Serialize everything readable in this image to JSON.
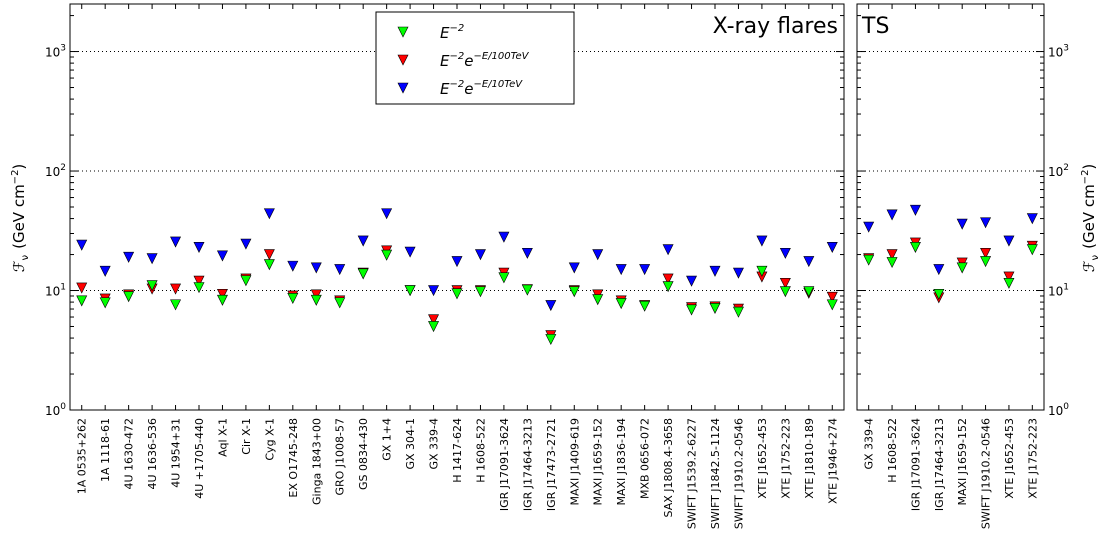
{
  "chart_data": {
    "type": "scatter",
    "y_scale": "log",
    "ylim": [
      1,
      2500
    ],
    "ylabel": "ℱν (GeV cm⁻²)",
    "ylabel_parts": {
      "symbol": "ℱ",
      "sub": "ν",
      "unit": "(GeV cm",
      "exp": "−2",
      "close": ")"
    },
    "ytick_values": [
      1,
      10,
      100,
      1000
    ],
    "ytick_labels": [
      {
        "base": "10",
        "exp": "0"
      },
      {
        "base": "10",
        "exp": "1"
      },
      {
        "base": "10",
        "exp": "2"
      },
      {
        "base": "10",
        "exp": "3"
      }
    ],
    "grid": "dotted horizontal at 10, 100, 1000",
    "legend": {
      "placement": "top-center of left panel",
      "entries": [
        {
          "key": "e2",
          "base": "E",
          "exp": "−2",
          "color": "#00ff00"
        },
        {
          "key": "cut100",
          "base": "E",
          "exp": "−2",
          "mid": "e",
          "exp2": "−E/100TeV",
          "color": "#ff0000"
        },
        {
          "key": "cut10",
          "base": "E",
          "exp": "−2",
          "mid": "e",
          "exp2": "−E/10TeV",
          "color": "#0000ff"
        }
      ]
    },
    "panels": [
      {
        "title": "X-ray flares",
        "categories": [
          "1A 0535+262",
          "1A 1118-61",
          "4U 1630-472",
          "4U 1636-536",
          "4U 1954+31",
          "4U +1705-440",
          "Aql X-1",
          "Cir X-1",
          "Cyg X-1",
          "EX O1745-248",
          "Ginga 1843+00",
          "GRO J1008-57",
          "GS 0834-430",
          "GX 1+4",
          "GX 304-1",
          "GX 339-4",
          "H 1417-624",
          "H 1608-522",
          "IGR J17091-3624",
          "IGR J17464-3213",
          "IGR J17473-2721",
          "MAXI J1409-619",
          "MAXI J1659-152",
          "MAXI J1836-194",
          "MXB 0656-072",
          "SAX J1808.4-3658",
          "SWIFT J1539.2-6227",
          "SWIFT J1842.5-1124",
          "SWIFT J1910.2-0546",
          "XTE J1652-453",
          "XTE J1752-223",
          "XTE J1810-189",
          "XTE J1946+274"
        ],
        "series": [
          {
            "key": "cut10",
            "color": "#0000ff",
            "values": [
              24,
              14.5,
              19,
              18.5,
              25.5,
              23,
              19.5,
              24.5,
              44,
              16,
              15.5,
              15,
              26,
              44,
              21,
              10,
              17.5,
              20,
              28,
              20.5,
              7.5,
              15.5,
              20,
              15,
              15,
              22,
              12,
              14.5,
              14,
              26,
              20.5,
              17.5,
              23
            ]
          },
          {
            "key": "cut100",
            "color": "#ff0000",
            "values": [
              10.5,
              8.5,
              9.2,
              10.3,
              10.3,
              12,
              9.3,
              12.5,
              20,
              9,
              9.2,
              8.2,
              14,
              21.5,
              10,
              5.7,
              10,
              10,
              14,
              10.2,
              4.2,
              10,
              9.2,
              8.2,
              7.5,
              12.5,
              7.2,
              7.3,
              7,
              13,
              11.5,
              9.5,
              8.8
            ]
          },
          {
            "key": "e2",
            "color": "#00ff00",
            "values": [
              8.2,
              7.9,
              8.9,
              11,
              7.6,
              10.6,
              8.3,
              12.1,
              16.5,
              8.6,
              8.3,
              7.9,
              13.8,
              19.8,
              10,
              5,
              9.4,
              9.8,
              12.8,
              10.1,
              3.9,
              9.8,
              8.4,
              7.8,
              7.4,
              10.8,
              6.9,
              7.1,
              6.6,
              14.5,
              9.8,
              9.8,
              7.6
            ]
          }
        ]
      },
      {
        "title": "TS",
        "categories": [
          "GX 339-4",
          "H 1608-522",
          "IGR J17091-3624",
          "IGR J17464-3213",
          "MAXI J1659-152",
          "SWIFT J1910.2-0546",
          "XTE J1652-453",
          "XTE J1752-223"
        ],
        "series": [
          {
            "key": "cut10",
            "color": "#0000ff",
            "values": [
              34,
              43,
              47,
              15,
              36,
              37,
              26,
              40
            ]
          },
          {
            "key": "cut100",
            "color": "#ff0000",
            "values": [
              18.5,
              20,
              25,
              8.7,
              17,
              20.5,
              13,
              23.5
            ]
          },
          {
            "key": "e2",
            "color": "#00ff00",
            "values": [
              18,
              17.2,
              23,
              9.3,
              15.5,
              17.5,
              11.5,
              22
            ]
          }
        ]
      }
    ]
  }
}
